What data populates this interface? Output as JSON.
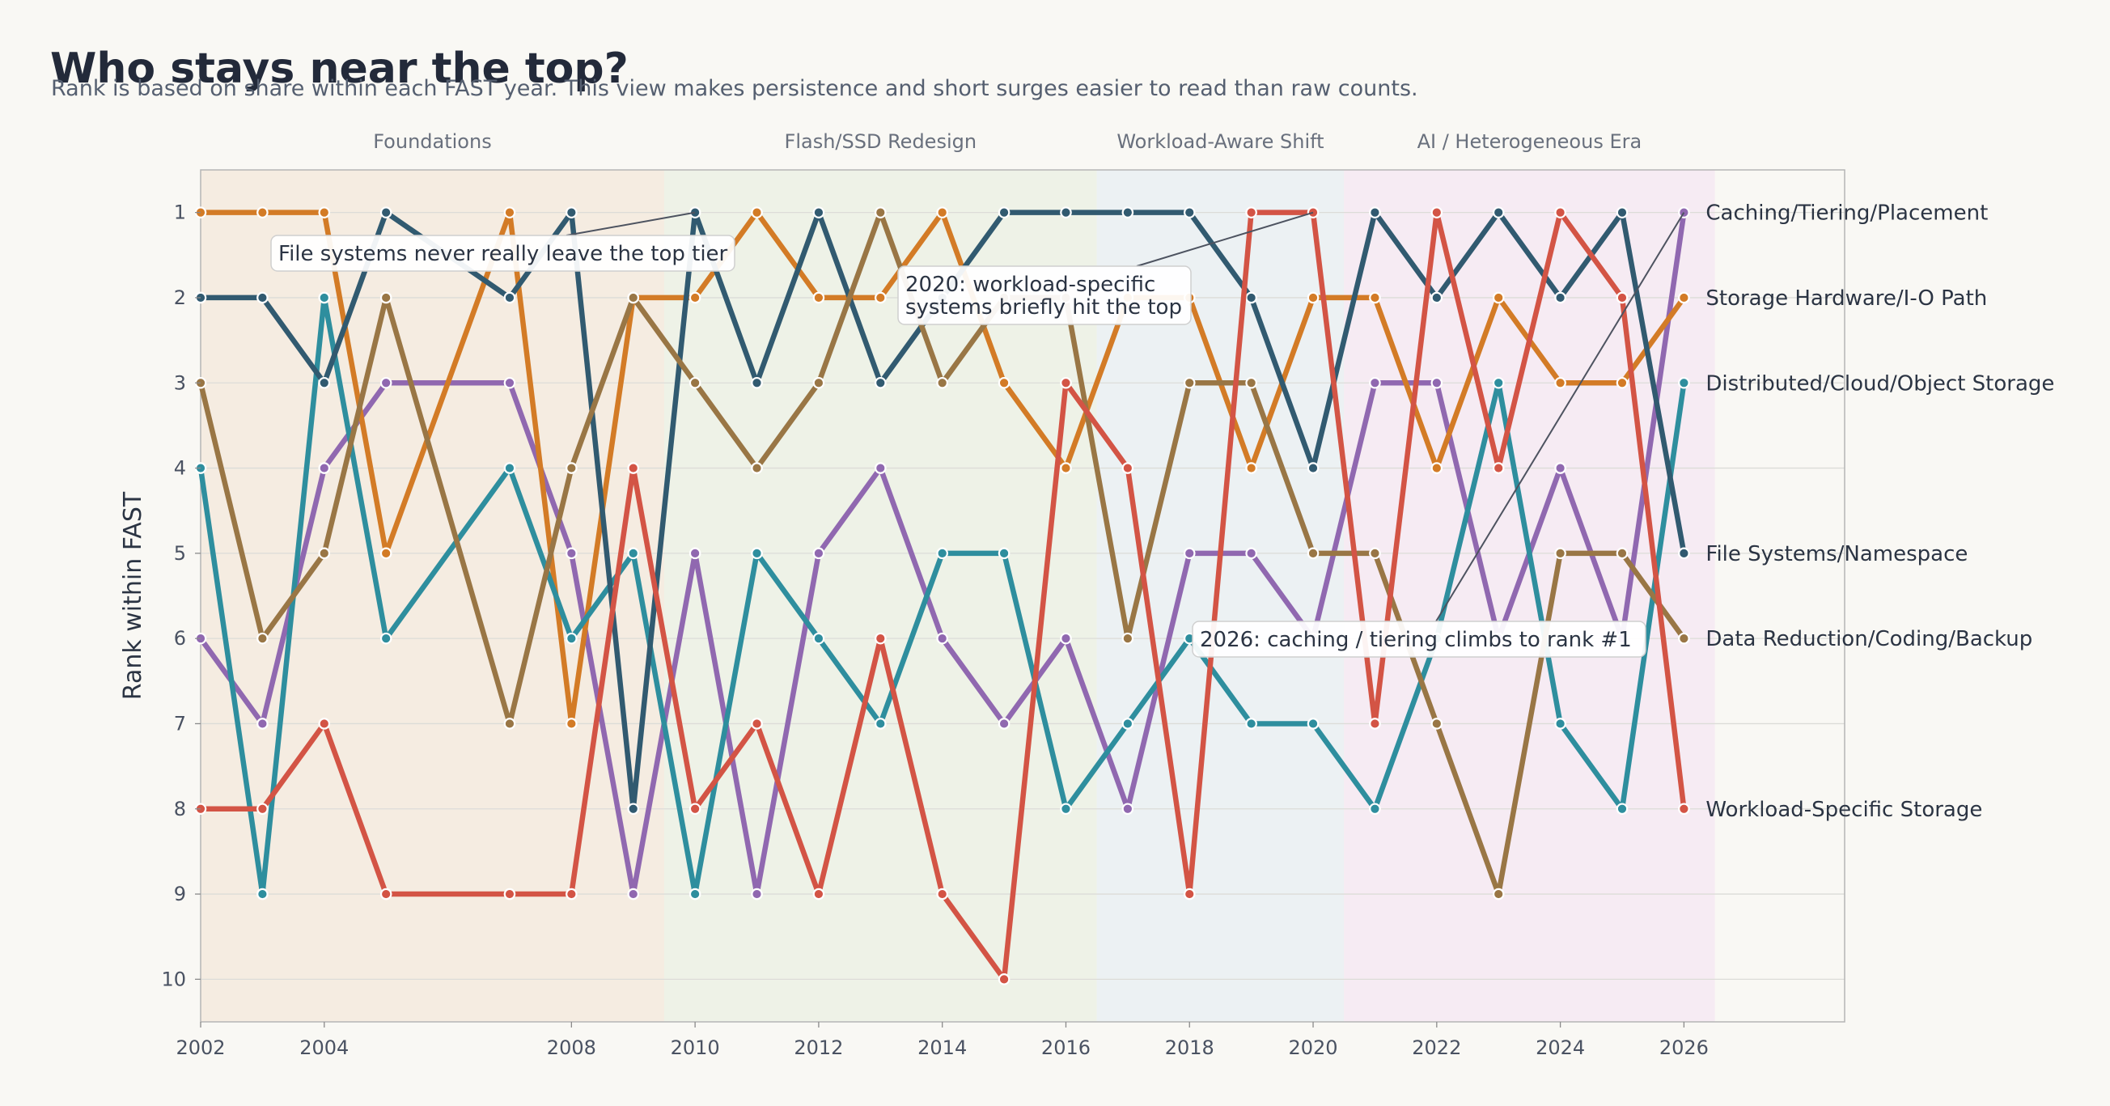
{
  "title": "Who stays near the top?",
  "subtitle": "Rank is based on share within each FAST year. This view makes persistence and short surges easier to read than raw counts.",
  "chart_data": {
    "type": "line",
    "xlabel": "",
    "ylabel": "Rank within FAST",
    "xlim": [
      2002,
      2028.6
    ],
    "ylim": [
      10.5,
      0.5
    ],
    "x_ticks": [
      2002,
      2004,
      2008,
      2010,
      2012,
      2014,
      2016,
      2018,
      2020,
      2022,
      2024,
      2026
    ],
    "y_ticks": [
      1,
      2,
      3,
      4,
      5,
      6,
      7,
      8,
      9,
      10
    ],
    "grid": "horizontal",
    "eras": [
      {
        "label": "Foundations",
        "start": 2002,
        "end": 2009.5,
        "color": "#f5ece1"
      },
      {
        "label": "Flash/SSD Redesign",
        "start": 2009.5,
        "end": 2016.5,
        "color": "#eef2e7"
      },
      {
        "label": "Workload-Aware Shift",
        "start": 2016.5,
        "end": 2020.5,
        "color": "#ecf1f3"
      },
      {
        "label": "AI / Heterogeneous Era",
        "start": 2020.5,
        "end": 2026.5,
        "color": "#f6ebf3"
      }
    ],
    "x": [
      2002,
      2003,
      2004,
      2005,
      2007,
      2008,
      2009,
      2010,
      2011,
      2012,
      2013,
      2014,
      2015,
      2016,
      2017,
      2018,
      2019,
      2020,
      2021,
      2022,
      2023,
      2024,
      2025,
      2026
    ],
    "series": [
      {
        "name": "Caching/Tiering/Placement",
        "color": "#9068b0",
        "values": [
          6,
          7,
          4,
          3,
          3,
          5,
          9,
          5,
          9,
          5,
          4,
          6,
          7,
          6,
          8,
          5,
          5,
          6,
          3,
          3,
          6,
          4,
          6,
          1
        ]
      },
      {
        "name": "Storage Hardware/I-O Path",
        "color": "#d37b26",
        "values": [
          1,
          1,
          1,
          5,
          1,
          7,
          2,
          2,
          1,
          2,
          2,
          1,
          3,
          4,
          2,
          2,
          4,
          2,
          2,
          4,
          2,
          3,
          3,
          2
        ]
      },
      {
        "name": "Distributed/Cloud/Object Storage",
        "color": "#2e8e9e",
        "values": [
          4,
          9,
          2,
          6,
          4,
          6,
          5,
          9,
          5,
          6,
          7,
          5,
          5,
          8,
          7,
          6,
          7,
          7,
          8,
          6,
          3,
          7,
          8,
          3
        ]
      },
      {
        "name": "File Systems/Namespace",
        "color": "#315a70",
        "values": [
          2,
          2,
          3,
          1,
          2,
          1,
          8,
          1,
          3,
          1,
          3,
          2,
          1,
          1,
          1,
          1,
          2,
          4,
          1,
          2,
          1,
          2,
          1,
          5
        ]
      },
      {
        "name": "Data Reduction/Coding/Backup",
        "color": "#997645",
        "values": [
          3,
          6,
          5,
          2,
          7,
          4,
          2,
          3,
          4,
          3,
          1,
          3,
          2,
          2,
          6,
          3,
          3,
          5,
          5,
          7,
          9,
          5,
          5,
          6
        ]
      },
      {
        "name": "Workload-Specific Storage",
        "color": "#d35445",
        "values": [
          8,
          8,
          7,
          9,
          9,
          9,
          4,
          8,
          7,
          9,
          6,
          9,
          10,
          3,
          4,
          9,
          1,
          1,
          7,
          1,
          4,
          1,
          2,
          8
        ]
      }
    ],
    "annotations": [
      {
        "text": "File systems never really leave the top tier",
        "target": [
          2010,
          1
        ]
      },
      {
        "text": "2020: workload-specific\nsystems briefly hit the top",
        "target": [
          2020,
          1
        ]
      },
      {
        "text": "2026: caching / tiering climbs to rank #1",
        "target": [
          2026,
          1
        ]
      }
    ]
  }
}
